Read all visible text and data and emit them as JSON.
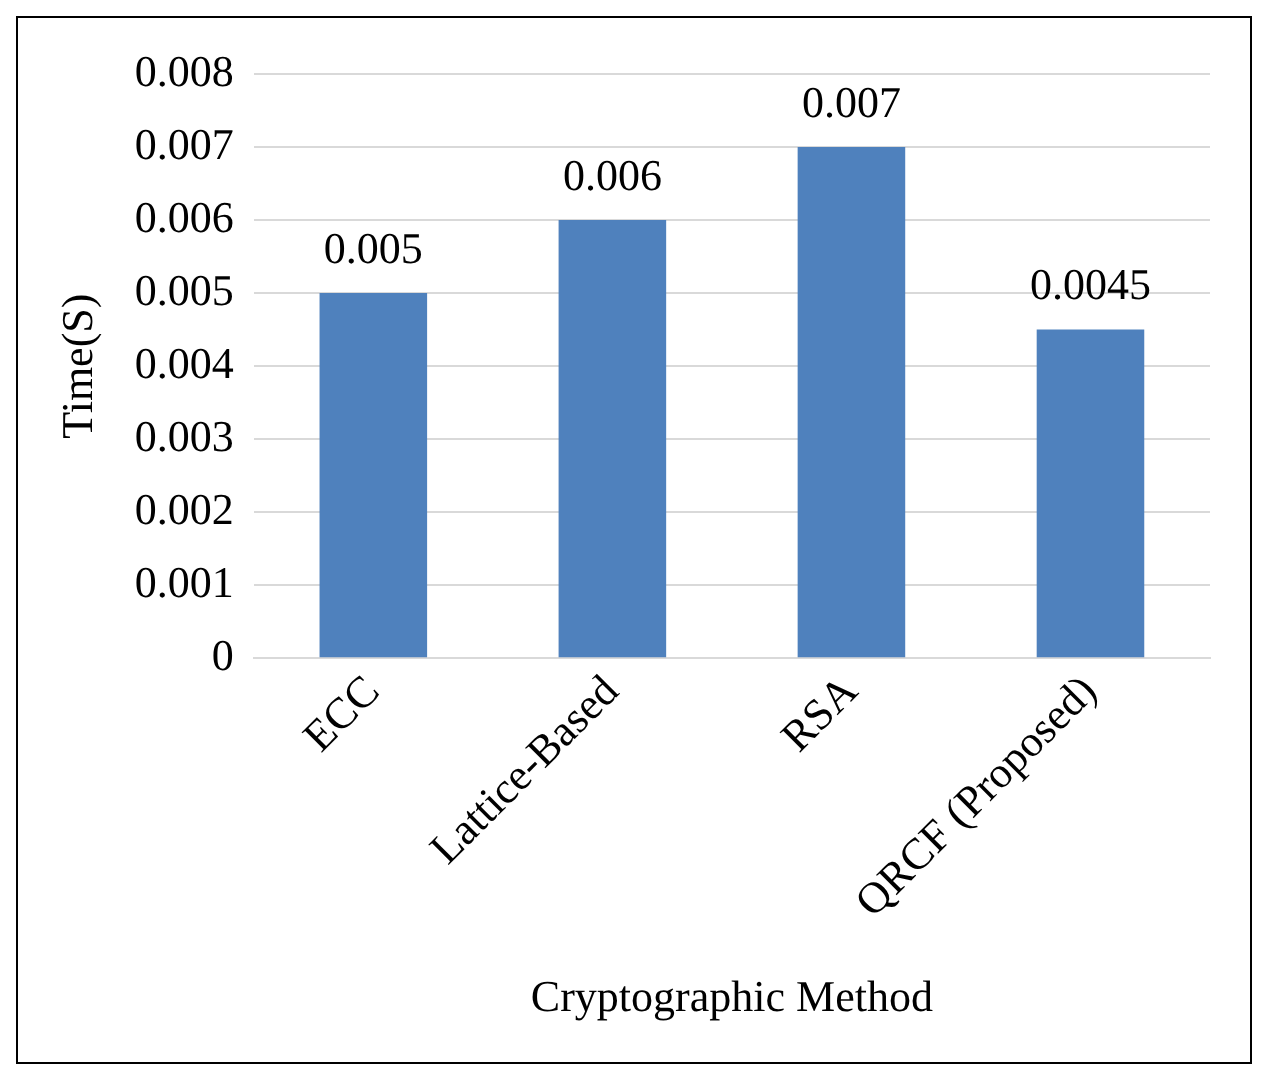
{
  "chart_data": {
    "type": "bar",
    "xlabel": "Cryptographic Method",
    "ylabel": "Time(S)",
    "categories": [
      "ECC",
      "Lattice-Based",
      "RSA",
      "QRCF (Proposed)"
    ],
    "values": [
      0.005,
      0.006,
      0.007,
      0.0045
    ],
    "color": "#4f81bd",
    "ylim": [
      0,
      0.008
    ],
    "yticks": [
      0,
      0.001,
      0.002,
      0.003,
      0.004,
      0.005,
      0.006,
      0.007,
      0.008
    ],
    "grid": "y",
    "legend": false,
    "data_labels": true
  }
}
